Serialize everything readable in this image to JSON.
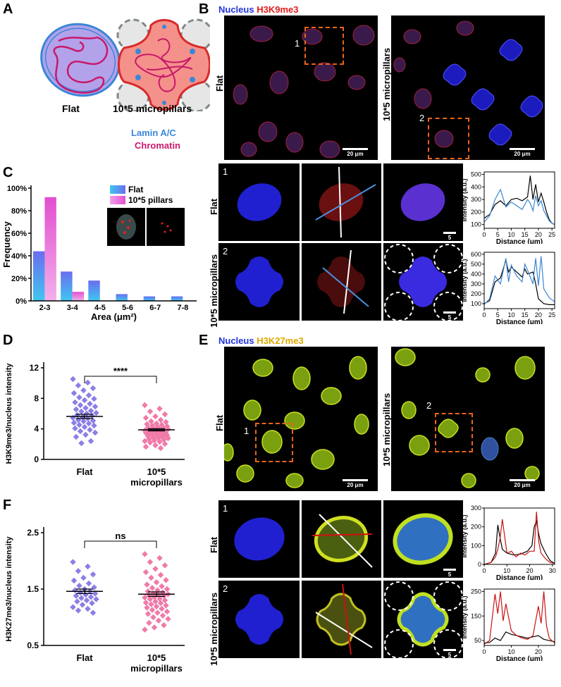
{
  "panels": {
    "A": {
      "letter": "A",
      "flat_label": "Flat",
      "pillar_label": "10*5 micropillars",
      "legend_lamin": "Lamin A/C",
      "legend_chromatin": "Chromatin",
      "colors": {
        "lamin": "#3b86d6",
        "chromatin": "#c8186b"
      }
    },
    "B": {
      "letter": "B",
      "header_nucleus": "Nucleus",
      "header_mark": "H3K9me3",
      "row_flat": "Flat",
      "row_pillar": "10*5 micropillars",
      "roi1": "1",
      "roi2": "2",
      "scale_large": "20 μm",
      "scale_small": "5 μm"
    },
    "C": {
      "letter": "C",
      "legend_flat": "Flat",
      "legend_pillar": "10*5 pillars"
    },
    "D": {
      "letter": "D",
      "sig": "****"
    },
    "E": {
      "letter": "E",
      "header_nucleus": "Nucleus",
      "header_mark": "H3K27me3",
      "row_flat": "Flat",
      "row_pillar": "10*5 micropillars",
      "roi1": "1",
      "roi2": "2",
      "scale_large": "20 μm",
      "scale_small": "5 μm"
    },
    "F": {
      "letter": "F",
      "sig": "ns"
    }
  },
  "chart_data": [
    {
      "id": "C",
      "type": "bar",
      "title": "",
      "xlabel": "Area (μm²)",
      "ylabel": "Frequency",
      "categories": [
        "2-3",
        "3-4",
        "4-5",
        "5-6",
        "6-7",
        "7-8"
      ],
      "y_ticks": [
        "0%",
        "20%",
        "40%",
        "60%",
        "80%",
        "100%"
      ],
      "ylim": [
        0,
        100
      ],
      "series": [
        {
          "name": "Flat",
          "values": [
            44,
            26,
            18,
            6,
            4,
            4
          ],
          "color": "#5a7ff0"
        },
        {
          "name": "10*5 pillars",
          "values": [
            92,
            8,
            0,
            0,
            0,
            0
          ],
          "color": "#ee5fd0"
        }
      ]
    },
    {
      "id": "D",
      "type": "scatter",
      "ylabel": "H3K9me3/nucleus intensity",
      "categories": [
        "Flat",
        "10*5\nmicropillars"
      ],
      "y_ticks": [
        "0",
        "4",
        "8",
        "12"
      ],
      "ylim": [
        0,
        13
      ],
      "means": [
        6.1,
        4.2
      ],
      "sem": [
        0.3,
        0.15
      ],
      "series": [
        {
          "name": "Flat",
          "color": "#8a7fe6",
          "values": [
            11.4,
            10.9,
            10.5,
            10.1,
            9.8,
            9.4,
            9.1,
            8.8,
            8.6,
            8.4,
            8.1,
            7.9,
            7.7,
            7.5,
            7.3,
            7.1,
            6.9,
            6.8,
            6.6,
            6.5,
            6.3,
            6.2,
            6.0,
            5.9,
            5.8,
            5.6,
            5.5,
            5.4,
            5.2,
            5.1,
            4.9,
            4.8,
            4.6,
            4.4,
            4.2,
            4.0,
            3.8,
            3.5,
            3.2,
            2.6,
            2.3
          ]
        },
        {
          "name": "10*5 micropillars",
          "color": "#f07aa8",
          "values": [
            7.7,
            7.2,
            6.8,
            6.4,
            6.1,
            5.9,
            5.6,
            5.4,
            5.3,
            5.1,
            5.0,
            4.9,
            4.8,
            4.7,
            4.6,
            4.5,
            4.5,
            4.4,
            4.3,
            4.3,
            4.2,
            4.2,
            4.1,
            4.1,
            4.0,
            4.0,
            3.9,
            3.9,
            3.8,
            3.8,
            3.7,
            3.7,
            3.6,
            3.6,
            3.5,
            3.5,
            3.4,
            3.3,
            3.3,
            3.2,
            3.1,
            3.0,
            3.0,
            2.9,
            2.8,
            2.7,
            2.6,
            2.5,
            2.4,
            2.2,
            2.0,
            1.8,
            1.6
          ]
        }
      ]
    },
    {
      "id": "F",
      "type": "scatter",
      "ylabel": "H3K27me3/nucleus intensity",
      "categories": [
        "Flat",
        "10*5\nmicropillars"
      ],
      "y_ticks": [
        "0.5",
        "1.5",
        "2.5"
      ],
      "ylim": [
        0.5,
        2.5
      ],
      "means": [
        1.46,
        1.41
      ],
      "sem": [
        0.04,
        0.04
      ],
      "series": [
        {
          "name": "Flat",
          "color": "#8a7fe6",
          "values": [
            1.98,
            1.9,
            1.82,
            1.76,
            1.7,
            1.65,
            1.6,
            1.56,
            1.53,
            1.5,
            1.48,
            1.46,
            1.44,
            1.42,
            1.4,
            1.38,
            1.36,
            1.34,
            1.32,
            1.3,
            1.28,
            1.25,
            1.22,
            1.18,
            1.15,
            1.12,
            1.08
          ]
        },
        {
          "name": "10*5 micropillars",
          "color": "#f07aa8",
          "values": [
            2.12,
            2.05,
            1.98,
            1.92,
            1.86,
            1.8,
            1.75,
            1.7,
            1.66,
            1.62,
            1.58,
            1.55,
            1.52,
            1.5,
            1.48,
            1.46,
            1.44,
            1.42,
            1.41,
            1.4,
            1.39,
            1.38,
            1.36,
            1.35,
            1.33,
            1.32,
            1.3,
            1.28,
            1.26,
            1.25,
            1.23,
            1.21,
            1.19,
            1.17,
            1.15,
            1.13,
            1.1,
            1.08,
            1.06,
            1.03,
            1.0,
            0.97,
            0.94,
            0.9,
            0.86,
            0.82,
            0.78
          ]
        }
      ]
    },
    {
      "id": "B1",
      "type": "line",
      "xlabel": "Distance (μm)",
      "ylabel": "Intensity (a.u.)",
      "x_ticks": [
        "0",
        "5",
        "10",
        "15",
        "20",
        "25"
      ],
      "y_ticks": [
        "100",
        "200",
        "300",
        "400",
        "500"
      ],
      "xlim": [
        0,
        26
      ],
      "ylim": [
        70,
        520
      ],
      "series": [
        {
          "color": "#000000",
          "x": [
            0,
            2,
            4,
            6,
            8,
            10,
            12,
            14,
            16,
            17,
            18,
            19,
            20,
            21,
            22,
            23,
            24,
            25,
            26
          ],
          "values": [
            150,
            180,
            260,
            290,
            250,
            300,
            310,
            290,
            320,
            490,
            300,
            420,
            280,
            350,
            280,
            200,
            140,
            110,
            100
          ]
        },
        {
          "color": "#3b86d6",
          "x": [
            0,
            2,
            4,
            6,
            8,
            10,
            12,
            14,
            16,
            17,
            18,
            19,
            20,
            21,
            22,
            23,
            24,
            25,
            26
          ],
          "values": [
            120,
            170,
            300,
            380,
            240,
            280,
            250,
            220,
            300,
            270,
            210,
            330,
            250,
            290,
            210,
            170,
            130,
            110,
            100
          ]
        }
      ]
    },
    {
      "id": "B2",
      "type": "line",
      "xlabel": "Distance (μm)",
      "ylabel": "Intensity (a.u.)",
      "x_ticks": [
        "0",
        "5",
        "10",
        "15",
        "20",
        "25"
      ],
      "y_ticks": [
        "100",
        "200",
        "300",
        "400",
        "500",
        "600"
      ],
      "xlim": [
        0,
        26
      ],
      "ylim": [
        50,
        620
      ],
      "series": [
        {
          "color": "#000000",
          "x": [
            0,
            2,
            4,
            6,
            8,
            9,
            10,
            12,
            14,
            15,
            16,
            18,
            19,
            20,
            22,
            24,
            26
          ],
          "values": [
            100,
            130,
            320,
            360,
            540,
            420,
            470,
            420,
            370,
            450,
            400,
            420,
            300,
            150,
            100,
            90,
            90
          ]
        },
        {
          "color": "#3b86d6",
          "x": [
            0,
            2,
            4,
            6,
            8,
            9,
            10,
            12,
            14,
            15,
            16,
            18,
            19,
            20,
            21,
            22,
            24,
            26
          ],
          "values": [
            90,
            150,
            380,
            300,
            560,
            320,
            490,
            380,
            320,
            500,
            440,
            300,
            560,
            280,
            580,
            250,
            160,
            120
          ]
        }
      ]
    },
    {
      "id": "E1",
      "type": "line",
      "xlabel": "Distance (μm)",
      "ylabel": "Intensity (a.u.)",
      "x_ticks": [
        "0",
        "10",
        "20",
        "30"
      ],
      "y_ticks": [
        "0",
        "100",
        "200",
        "300"
      ],
      "xlim": [
        0,
        31
      ],
      "ylim": [
        0,
        300
      ],
      "series": [
        {
          "color": "#000000",
          "x": [
            0,
            3,
            5,
            6,
            7,
            8,
            10,
            13,
            16,
            19,
            21,
            22,
            23,
            24,
            25,
            27,
            29,
            31
          ],
          "values": [
            0,
            10,
            60,
            210,
            140,
            80,
            60,
            50,
            55,
            70,
            100,
            200,
            230,
            160,
            110,
            60,
            20,
            5
          ]
        },
        {
          "color": "#c81414",
          "x": [
            0,
            3,
            5,
            6,
            7,
            8,
            10,
            12,
            14,
            16,
            18,
            20,
            22,
            23,
            24,
            25,
            27,
            29,
            31
          ],
          "values": [
            0,
            10,
            40,
            80,
            140,
            240,
            60,
            70,
            40,
            60,
            50,
            70,
            70,
            280,
            120,
            60,
            30,
            10,
            5
          ]
        }
      ]
    },
    {
      "id": "E2",
      "type": "line",
      "xlabel": "Distance (μm)",
      "ylabel": "Intensity (a.u.)",
      "x_ticks": [
        "0",
        "10",
        "20"
      ],
      "y_ticks": [
        "50",
        "150",
        "250"
      ],
      "xlim": [
        0,
        26
      ],
      "ylim": [
        30,
        260
      ],
      "series": [
        {
          "color": "#000000",
          "x": [
            0,
            2,
            4,
            5,
            6,
            8,
            10,
            12,
            14,
            16,
            18,
            20,
            22,
            24,
            26
          ],
          "values": [
            40,
            42,
            60,
            55,
            50,
            85,
            75,
            70,
            65,
            60,
            65,
            70,
            55,
            50,
            45
          ]
        },
        {
          "color": "#c81414",
          "x": [
            0,
            2,
            4,
            5,
            6,
            7,
            8,
            10,
            12,
            14,
            16,
            18,
            20,
            21,
            22,
            23,
            24,
            26
          ],
          "values": [
            35,
            50,
            240,
            160,
            250,
            130,
            200,
            90,
            70,
            60,
            55,
            70,
            190,
            120,
            250,
            110,
            60,
            40
          ]
        }
      ]
    }
  ]
}
